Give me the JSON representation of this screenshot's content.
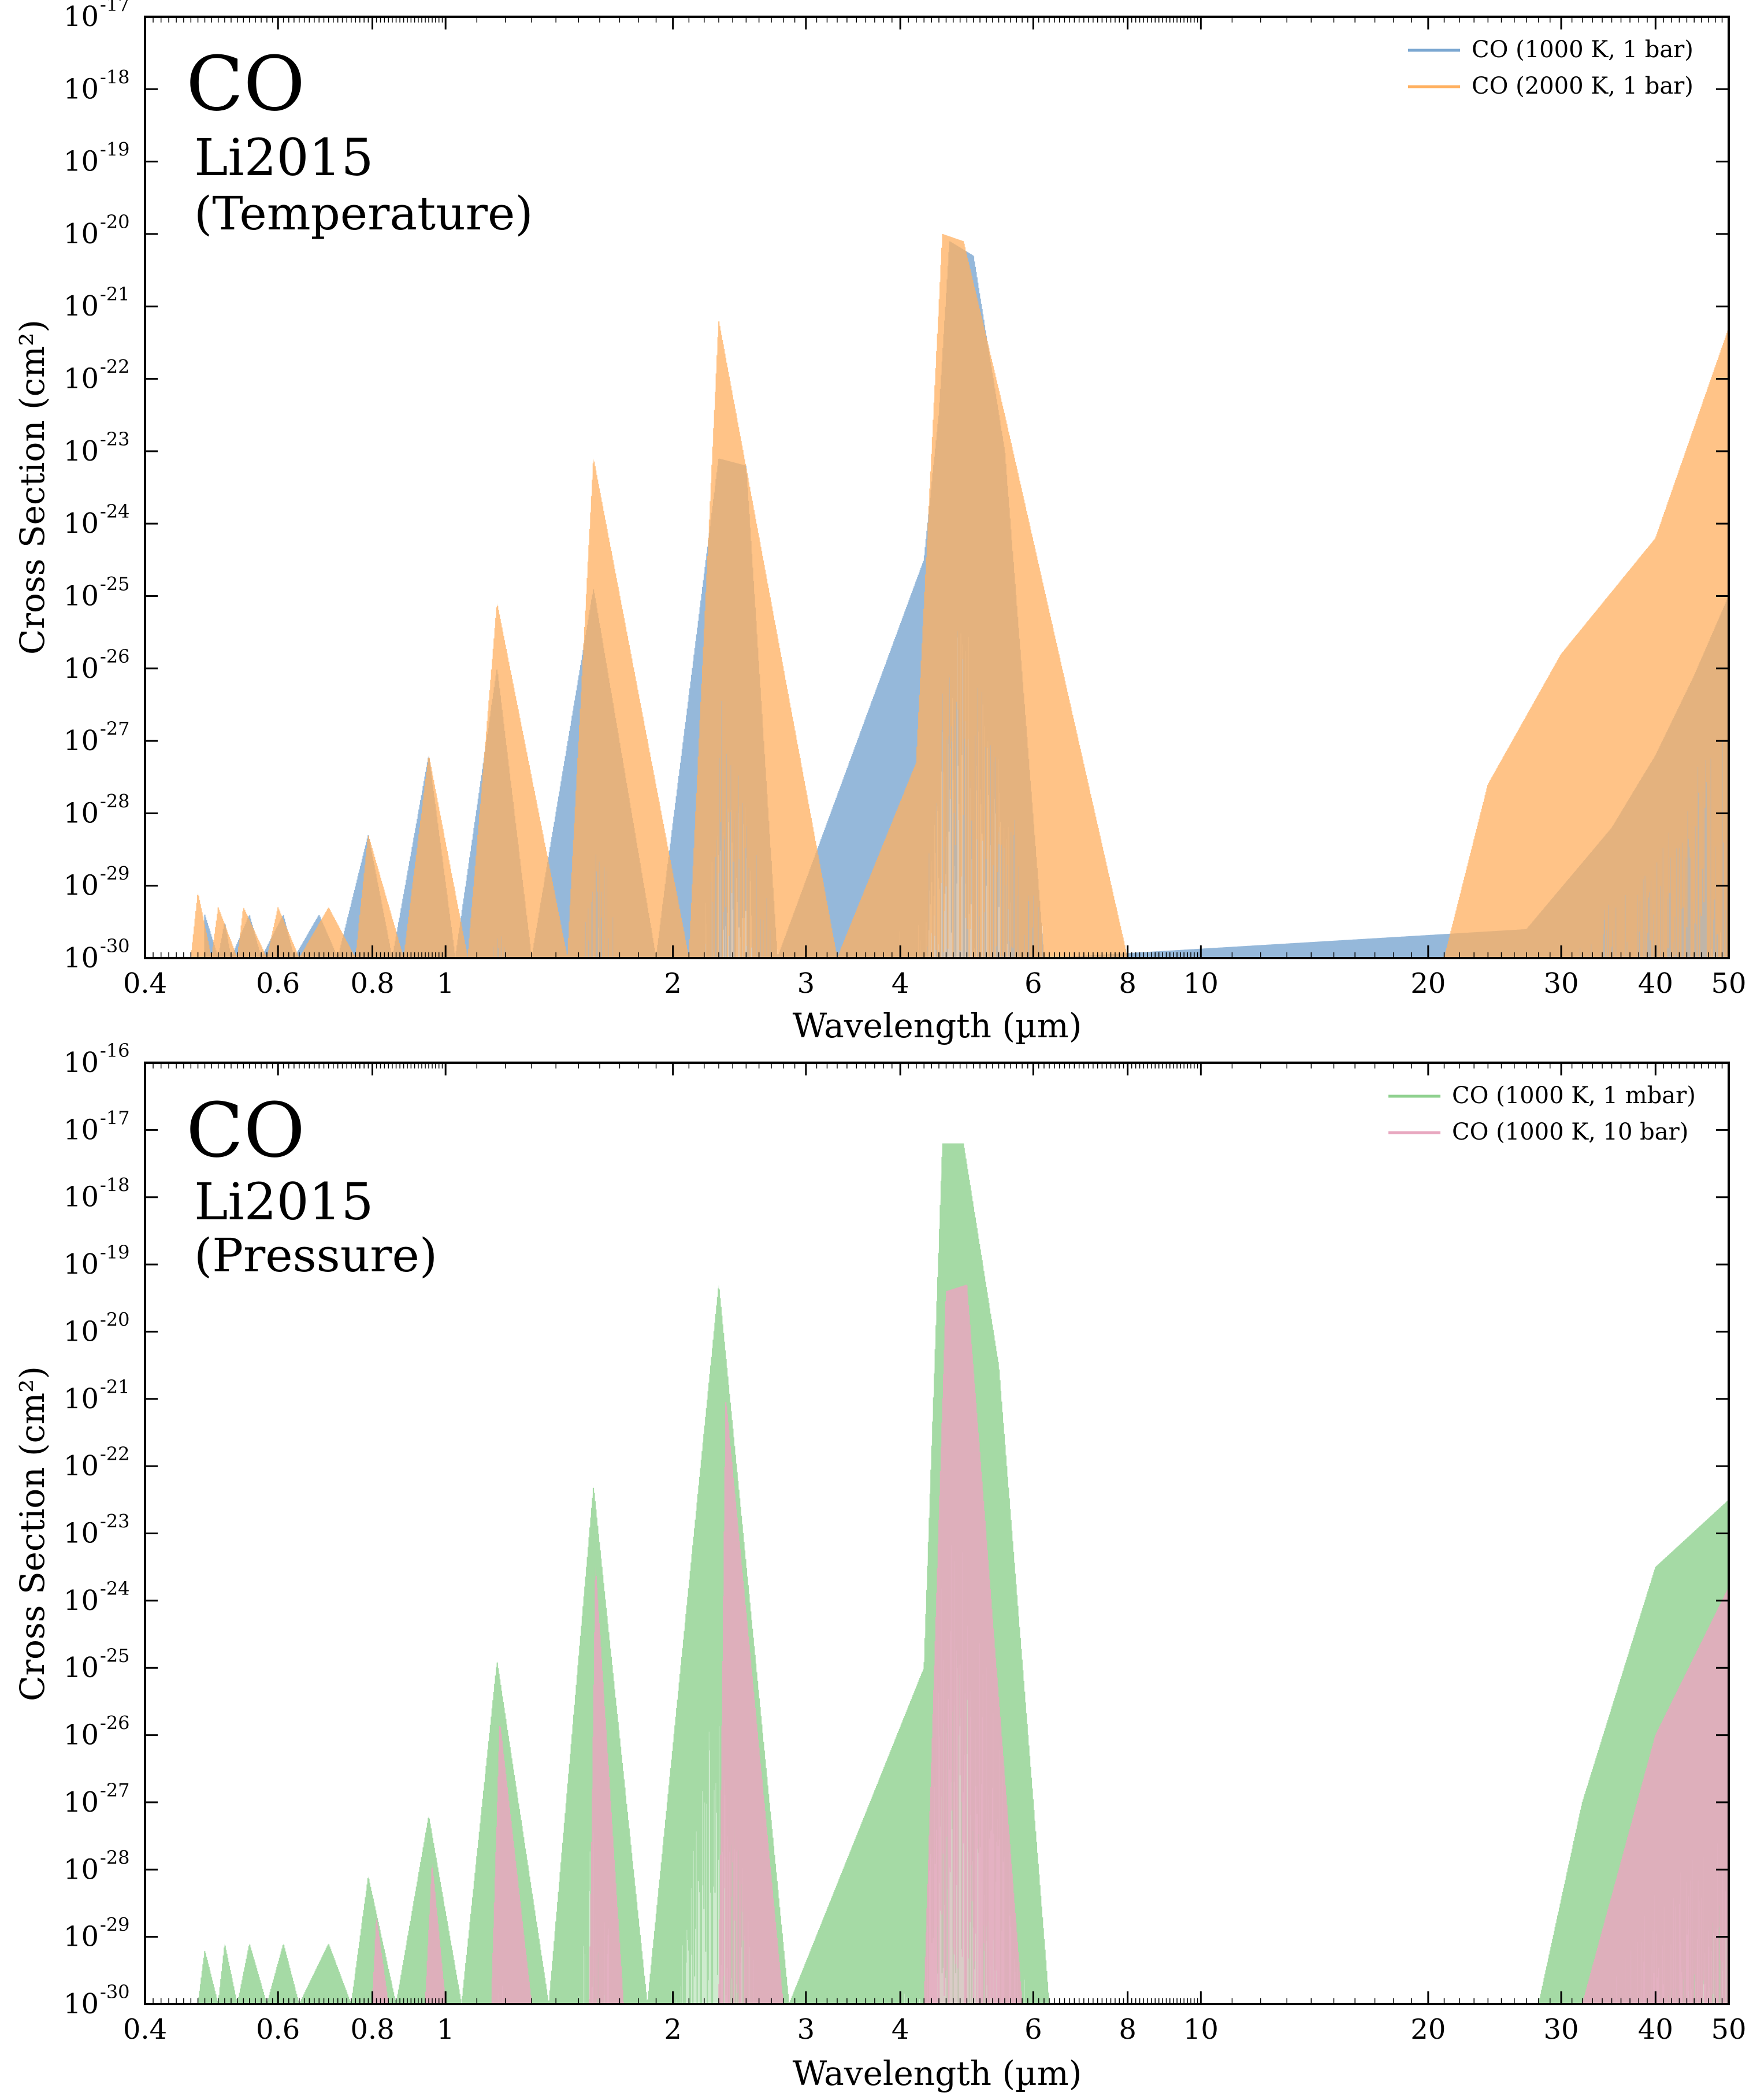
{
  "chart_data": [
    {
      "type": "area",
      "name": "top",
      "title": "CO",
      "annotation_line1": "Li2015",
      "annotation_line2": "(Temperature)",
      "xlabel": "Wavelength (µm)",
      "ylabel": "Cross Section (cm²)",
      "xscale": "log",
      "yscale": "log",
      "xlim": [
        0.4,
        50
      ],
      "ylim": [
        1e-30,
        1e-17
      ],
      "xticks": [
        0.4,
        0.6,
        0.8,
        1,
        2,
        3,
        4,
        6,
        8,
        10,
        20,
        30,
        40,
        50
      ],
      "xtick_labels": [
        "0.4",
        "0.6",
        "0.8",
        "1",
        "2",
        "3",
        "4",
        "6",
        "8",
        "10",
        "20",
        "30",
        "40",
        "50"
      ],
      "yticks": [
        -30,
        -29,
        -28,
        -27,
        -26,
        -25,
        -24,
        -23,
        -22,
        -21,
        -20,
        -19,
        -18,
        -17
      ],
      "ytick_labels": [
        "10",
        "10",
        "10",
        "10",
        "10",
        "10",
        "10",
        "10",
        "10",
        "10",
        "10",
        "10",
        "10",
        "10"
      ],
      "ytick_exponents": [
        "-30",
        "-29",
        "-28",
        "-27",
        "-26",
        "-25",
        "-24",
        "-23",
        "-22",
        "-21",
        "-20",
        "-19",
        "-18",
        "-17"
      ],
      "legend_position": "top-right",
      "series": [
        {
          "name": "CO (1000 K, 1 bar)",
          "color": "#7ba7d1",
          "opacity": 0.8,
          "upper": [
            [
              0.48,
              -29.4
            ],
            [
              0.5,
              -30
            ],
            [
              0.51,
              -29.5
            ],
            [
              0.52,
              -30
            ],
            [
              0.55,
              -29.4
            ],
            [
              0.57,
              -30
            ],
            [
              0.61,
              -29.4
            ],
            [
              0.63,
              -30
            ],
            [
              0.68,
              -29.4
            ],
            [
              0.72,
              -30
            ],
            [
              0.79,
              -28.3
            ],
            [
              0.85,
              -30
            ],
            [
              0.95,
              -27.2
            ],
            [
              1.03,
              -30
            ],
            [
              1.17,
              -26.0
            ],
            [
              1.3,
              -30
            ],
            [
              1.57,
              -24.9
            ],
            [
              1.9,
              -30
            ],
            [
              2.3,
              -23.1
            ],
            [
              2.5,
              -23.2
            ],
            [
              2.75,
              -30
            ],
            [
              4.3,
              -24.5
            ],
            [
              4.5,
              -22.5
            ],
            [
              4.65,
              -20.1
            ],
            [
              5.0,
              -20.3
            ],
            [
              5.5,
              -23.0
            ],
            [
              6.2,
              -30
            ],
            [
              27,
              -29.6
            ],
            [
              35,
              -28.2
            ],
            [
              40,
              -27.2
            ],
            [
              45,
              -26.1
            ],
            [
              50,
              -25.0
            ]
          ],
          "lower": [
            [
              0.48,
              -30
            ],
            [
              50,
              -30
            ]
          ]
        },
        {
          "name": "CO (2000 K, 1 bar)",
          "color": "#ffb060",
          "opacity": 0.75,
          "upper": [
            [
              0.46,
              -30
            ],
            [
              0.47,
              -29.1
            ],
            [
              0.49,
              -30
            ],
            [
              0.5,
              -29.3
            ],
            [
              0.53,
              -30
            ],
            [
              0.54,
              -29.3
            ],
            [
              0.58,
              -30
            ],
            [
              0.6,
              -29.3
            ],
            [
              0.64,
              -30
            ],
            [
              0.7,
              -29.3
            ],
            [
              0.76,
              -30
            ],
            [
              0.79,
              -28.3
            ],
            [
              0.88,
              -30
            ],
            [
              0.95,
              -27.2
            ],
            [
              1.07,
              -30
            ],
            [
              1.17,
              -25.1
            ],
            [
              1.45,
              -30
            ],
            [
              1.57,
              -23.1
            ],
            [
              2.1,
              -30
            ],
            [
              2.3,
              -21.2
            ],
            [
              3.3,
              -30
            ],
            [
              4.2,
              -27.3
            ],
            [
              4.55,
              -20.0
            ],
            [
              4.85,
              -20.1
            ],
            [
              5.5,
              -22.5
            ],
            [
              8.0,
              -30
            ],
            [
              21,
              -30
            ],
            [
              24,
              -27.6
            ],
            [
              30,
              -25.8
            ],
            [
              40,
              -24.2
            ],
            [
              50,
              -21.3
            ]
          ],
          "lower": [
            [
              0.46,
              -30
            ],
            [
              50,
              -30
            ]
          ]
        }
      ]
    },
    {
      "type": "area",
      "name": "bottom",
      "title": "CO",
      "annotation_line1": "Li2015",
      "annotation_line2": "(Pressure)",
      "xlabel": "Wavelength (µm)",
      "ylabel": "Cross Section (cm²)",
      "xscale": "log",
      "yscale": "log",
      "xlim": [
        0.4,
        50
      ],
      "ylim": [
        1e-30,
        1e-16
      ],
      "xticks": [
        0.4,
        0.6,
        0.8,
        1,
        2,
        3,
        4,
        6,
        8,
        10,
        20,
        30,
        40,
        50
      ],
      "xtick_labels": [
        "0.4",
        "0.6",
        "0.8",
        "1",
        "2",
        "3",
        "4",
        "6",
        "8",
        "10",
        "20",
        "30",
        "40",
        "50"
      ],
      "yticks": [
        -30,
        -29,
        -28,
        -27,
        -26,
        -25,
        -24,
        -23,
        -22,
        -21,
        -20,
        -19,
        -18,
        -17,
        -16
      ],
      "ytick_labels": [
        "10",
        "10",
        "10",
        "10",
        "10",
        "10",
        "10",
        "10",
        "10",
        "10",
        "10",
        "10",
        "10",
        "10",
        "10"
      ],
      "ytick_exponents": [
        "-30",
        "-29",
        "-28",
        "-27",
        "-26",
        "-25",
        "-24",
        "-23",
        "-22",
        "-21",
        "-20",
        "-19",
        "-18",
        "-17",
        "-16"
      ],
      "legend_position": "top-right",
      "series": [
        {
          "name": "CO (1000 K, 1 mbar)",
          "color": "#8fd18f",
          "opacity": 0.8,
          "upper": [
            [
              0.47,
              -30
            ],
            [
              0.48,
              -29.2
            ],
            [
              0.5,
              -30
            ],
            [
              0.51,
              -29.1
            ],
            [
              0.53,
              -30
            ],
            [
              0.55,
              -29.1
            ],
            [
              0.58,
              -30
            ],
            [
              0.61,
              -29.1
            ],
            [
              0.64,
              -30
            ],
            [
              0.7,
              -29.1
            ],
            [
              0.75,
              -30
            ],
            [
              0.79,
              -28.1
            ],
            [
              0.86,
              -30
            ],
            [
              0.95,
              -27.2
            ],
            [
              1.05,
              -30
            ],
            [
              1.17,
              -24.9
            ],
            [
              1.37,
              -30
            ],
            [
              1.57,
              -22.3
            ],
            [
              1.85,
              -30
            ],
            [
              2.3,
              -19.3
            ],
            [
              2.85,
              -30
            ],
            [
              4.3,
              -25.0
            ],
            [
              4.55,
              -17.2
            ],
            [
              4.85,
              -17.2
            ],
            [
              5.4,
              -20.5
            ],
            [
              6.3,
              -30
            ],
            [
              28,
              -30
            ],
            [
              32,
              -27.0
            ],
            [
              40,
              -23.5
            ],
            [
              50,
              -22.5
            ]
          ],
          "lower": [
            [
              0.47,
              -30
            ],
            [
              50,
              -30
            ]
          ]
        },
        {
          "name": "CO (1000 K, 10 bar)",
          "color": "#e8a8c0",
          "opacity": 0.85,
          "upper": [
            [
              0.8,
              -30
            ],
            [
              0.81,
              -28.7
            ],
            [
              0.84,
              -30
            ],
            [
              0.94,
              -30
            ],
            [
              0.96,
              -27.9
            ],
            [
              1.0,
              -30
            ],
            [
              1.15,
              -30
            ],
            [
              1.18,
              -25.8
            ],
            [
              1.3,
              -30
            ],
            [
              1.55,
              -30
            ],
            [
              1.58,
              -23.5
            ],
            [
              1.72,
              -30
            ],
            [
              2.3,
              -30
            ],
            [
              2.35,
              -21.0
            ],
            [
              2.8,
              -30
            ],
            [
              4.3,
              -30
            ],
            [
              4.6,
              -19.4
            ],
            [
              4.9,
              -19.3
            ],
            [
              5.8,
              -30
            ],
            [
              32,
              -30
            ],
            [
              40,
              -26.0
            ],
            [
              50,
              -23.8
            ]
          ],
          "lower": [
            [
              0.8,
              -30
            ],
            [
              50,
              -30
            ]
          ]
        }
      ]
    }
  ]
}
